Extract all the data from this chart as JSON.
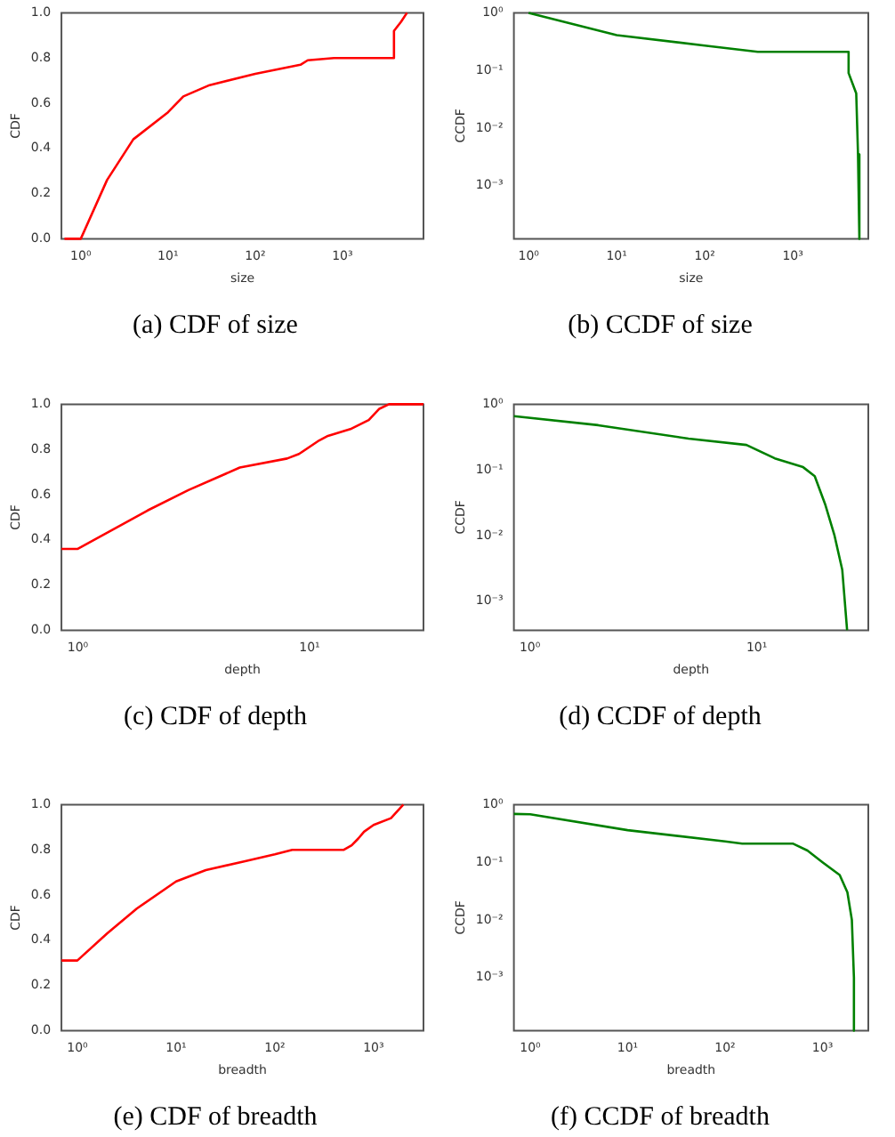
{
  "chart_data": [
    {
      "type": "line",
      "title": "(a) CDF of size",
      "xlabel": "size",
      "ylabel": "CDF",
      "log": "x",
      "xlim": [
        0.64,
        8500
      ],
      "ylim": [
        0,
        1
      ],
      "xticks": [
        {
          "value": 1,
          "label": "10⁰"
        },
        {
          "value": 10,
          "label": "10¹"
        },
        {
          "value": 100,
          "label": "10²"
        },
        {
          "value": 1000,
          "label": "10³"
        }
      ],
      "yticks": [
        {
          "value": 0,
          "label": "0.0"
        },
        {
          "value": 0.2,
          "label": "0.2"
        },
        {
          "value": 0.4,
          "label": "0.4"
        },
        {
          "value": 0.6,
          "label": "0.6"
        },
        {
          "value": 0.8,
          "label": "0.8"
        },
        {
          "value": 1,
          "label": "1.0"
        }
      ],
      "series": [
        {
          "color": "#ff0000",
          "x": [
            0.65,
            1,
            2,
            4,
            10,
            15,
            30,
            100,
            330,
            400,
            800,
            3900,
            3900,
            4700,
            5500
          ],
          "values": [
            0,
            0,
            0.26,
            0.44,
            0.56,
            0.63,
            0.68,
            0.73,
            0.77,
            0.79,
            0.8,
            0.8,
            0.92,
            0.96,
            1
          ]
        }
      ]
    },
    {
      "type": "line",
      "title": "(b) CCDF of size",
      "xlabel": "size",
      "ylabel": "CCDF",
      "log": "xy",
      "xlim": [
        0.68,
        7200
      ],
      "ylim": [
        0.00012,
        1
      ],
      "xticks": [
        {
          "value": 1,
          "label": "10⁰"
        },
        {
          "value": 10,
          "label": "10¹"
        },
        {
          "value": 100,
          "label": "10²"
        },
        {
          "value": 1000,
          "label": "10³"
        }
      ],
      "yticks": [
        {
          "value": 0.001,
          "label": "10⁻³"
        },
        {
          "value": 0.01,
          "label": "10⁻²"
        },
        {
          "value": 0.1,
          "label": "10⁻¹"
        },
        {
          "value": 1,
          "label": "10⁰"
        }
      ],
      "series": [
        {
          "color": "#008000",
          "x": [
            1,
            10,
            100,
            400,
            4300,
            4300,
            5250,
            5500,
            5700,
            5700
          ],
          "values": [
            1,
            0.41,
            0.27,
            0.21,
            0.21,
            0.09,
            0.04,
            0.0035,
            0.0035,
            0.00012
          ]
        }
      ]
    },
    {
      "type": "line",
      "title": "(c) CDF of depth",
      "xlabel": "depth",
      "ylabel": "CDF",
      "log": "x",
      "xlim": [
        0.85,
        31
      ],
      "ylim": [
        0,
        1
      ],
      "xticks": [
        {
          "value": 1,
          "label": "10⁰"
        },
        {
          "value": 10,
          "label": "10¹"
        }
      ],
      "yticks": [
        {
          "value": 0,
          "label": "0.0"
        },
        {
          "value": 0.2,
          "label": "0.2"
        },
        {
          "value": 0.4,
          "label": "0.4"
        },
        {
          "value": 0.6,
          "label": "0.6"
        },
        {
          "value": 0.8,
          "label": "0.8"
        },
        {
          "value": 1,
          "label": "1.0"
        }
      ],
      "series": [
        {
          "color": "#ff0000",
          "x": [
            0.85,
            1,
            2,
            3,
            5,
            8,
            9,
            11,
            12,
            15,
            18,
            20,
            22,
            31
          ],
          "values": [
            0.36,
            0.36,
            0.53,
            0.62,
            0.72,
            0.76,
            0.78,
            0.84,
            0.86,
            0.89,
            0.93,
            0.98,
            1,
            1
          ]
        }
      ]
    },
    {
      "type": "line",
      "title": "(d) CCDF of depth",
      "xlabel": "depth",
      "ylabel": "CCDF",
      "log": "xy",
      "xlim": [
        0.85,
        31
      ],
      "ylim": [
        0.00036,
        1
      ],
      "xticks": [
        {
          "value": 1,
          "label": "10⁰"
        },
        {
          "value": 10,
          "label": "10¹"
        }
      ],
      "yticks": [
        {
          "value": 0.001,
          "label": "10⁻³"
        },
        {
          "value": 0.01,
          "label": "10⁻²"
        },
        {
          "value": 0.1,
          "label": "10⁻¹"
        },
        {
          "value": 1,
          "label": "10⁰"
        }
      ],
      "series": [
        {
          "color": "#008000",
          "x": [
            0.85,
            2,
            5,
            9,
            12,
            16,
            18,
            20,
            22,
            23.8,
            25
          ],
          "values": [
            0.66,
            0.48,
            0.3,
            0.24,
            0.15,
            0.11,
            0.08,
            0.03,
            0.01,
            0.003,
            0.00036
          ]
        }
      ]
    },
    {
      "type": "line",
      "title": "(e) CDF of breadth",
      "xlabel": "breadth",
      "ylabel": "CDF",
      "log": "x",
      "xlim": [
        0.69,
        3200
      ],
      "ylim": [
        0,
        1
      ],
      "xticks": [
        {
          "value": 1,
          "label": "10⁰"
        },
        {
          "value": 10,
          "label": "10¹"
        },
        {
          "value": 100,
          "label": "10²"
        },
        {
          "value": 1000,
          "label": "10³"
        }
      ],
      "yticks": [
        {
          "value": 0,
          "label": "0.0"
        },
        {
          "value": 0.2,
          "label": "0.2"
        },
        {
          "value": 0.4,
          "label": "0.4"
        },
        {
          "value": 0.6,
          "label": "0.6"
        },
        {
          "value": 0.8,
          "label": "0.8"
        },
        {
          "value": 1,
          "label": "1.0"
        }
      ],
      "series": [
        {
          "color": "#ff0000",
          "x": [
            0.69,
            1,
            2,
            4,
            10,
            20,
            50,
            100,
            150,
            500,
            600,
            700,
            800,
            1000,
            1500,
            2000
          ],
          "values": [
            0.31,
            0.31,
            0.43,
            0.54,
            0.66,
            0.71,
            0.75,
            0.78,
            0.8,
            0.8,
            0.82,
            0.85,
            0.88,
            0.91,
            0.94,
            1
          ]
        }
      ]
    },
    {
      "type": "line",
      "title": "(f) CCDF of breadth",
      "xlabel": "breadth",
      "ylabel": "CCDF",
      "log": "xy",
      "xlim": [
        0.68,
        2950
      ],
      "ylim": [
        0.00012,
        1
      ],
      "xticks": [
        {
          "value": 1,
          "label": "10⁰"
        },
        {
          "value": 10,
          "label": "10¹"
        },
        {
          "value": 100,
          "label": "10²"
        },
        {
          "value": 1000,
          "label": "10³"
        }
      ],
      "yticks": [
        {
          "value": 0.001,
          "label": "10⁻³"
        },
        {
          "value": 0.01,
          "label": "10⁻²"
        },
        {
          "value": 0.1,
          "label": "10⁻¹"
        },
        {
          "value": 1,
          "label": "10⁰"
        }
      ],
      "series": [
        {
          "color": "#008000",
          "x": [
            0.68,
            1,
            10,
            100,
            150,
            500,
            700,
            1000,
            1500,
            1800,
            2000,
            2100,
            2100
          ],
          "values": [
            0.69,
            0.68,
            0.36,
            0.23,
            0.21,
            0.21,
            0.16,
            0.1,
            0.06,
            0.03,
            0.01,
            0.001,
            0.00012
          ]
        }
      ]
    }
  ]
}
